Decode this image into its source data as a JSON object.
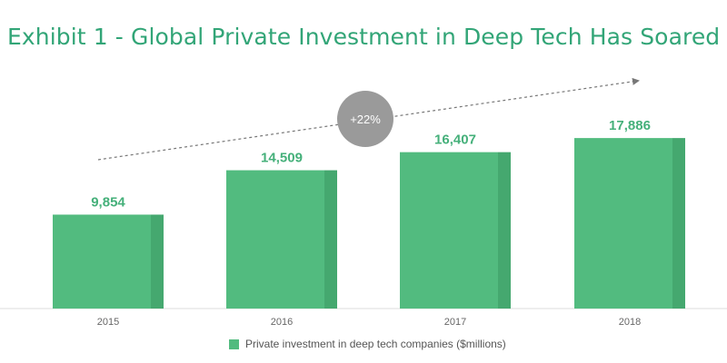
{
  "title": "Exhibit 1 - Global Private Investment in Deep Tech Has Soared",
  "colors": {
    "title": "#32a577",
    "bar_front": "#52bb7f",
    "bar_side": "#45a86f",
    "value_label": "#45b07a",
    "bubble": "#9a9a9a",
    "arrow": "#777777",
    "axis": "#dddddd",
    "tick": "#666666"
  },
  "annotation": {
    "growth_label": "+22%"
  },
  "chart_data": {
    "type": "bar",
    "categories": [
      "2015",
      "2016",
      "2017",
      "2018"
    ],
    "values": [
      9854,
      14509,
      16407,
      17886
    ],
    "value_labels": [
      "9,854",
      "14,509",
      "16,407",
      "17,886"
    ],
    "series": [
      {
        "name": "Private investment in deep tech companies ($millions)",
        "values": [
          9854,
          14509,
          16407,
          17886
        ]
      }
    ],
    "ylim": [
      0,
      22000
    ],
    "grid": false,
    "legend_position": "bottom-center"
  }
}
